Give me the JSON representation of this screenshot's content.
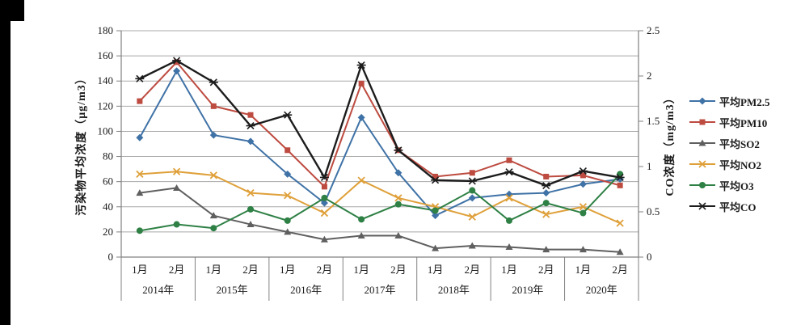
{
  "chart_data": {
    "type": "line",
    "title": "",
    "grid": true,
    "legend_position": "right",
    "left_axis": {
      "label": "污染物平均浓度（μg/m3）",
      "min": 0,
      "max": 180,
      "step": 20
    },
    "right_axis": {
      "label": "CO浓度（mg/m3）",
      "min": 0,
      "max": 2.5,
      "step": 0.5
    },
    "x_groups": [
      {
        "year": "2014年",
        "months": [
          "1月",
          "2月"
        ]
      },
      {
        "year": "2015年",
        "months": [
          "1月",
          "2月"
        ]
      },
      {
        "year": "2016年",
        "months": [
          "1月",
          "2月"
        ]
      },
      {
        "year": "2017年",
        "months": [
          "1月",
          "2月"
        ]
      },
      {
        "year": "2018年",
        "months": [
          "1月",
          "2月"
        ]
      },
      {
        "year": "2019年",
        "months": [
          "1月",
          "2月"
        ]
      },
      {
        "year": "2020年",
        "months": [
          "1月",
          "2月"
        ]
      }
    ],
    "series": [
      {
        "name": "平均PM2.5",
        "color": "#3f72a6",
        "marker": "diamond",
        "axis": "left",
        "values": [
          95,
          148,
          97,
          92,
          66,
          43,
          111,
          67,
          33,
          47,
          50,
          51,
          58,
          62
        ]
      },
      {
        "name": "平均PM10",
        "color": "#bd4b40",
        "marker": "square",
        "axis": "left",
        "values": [
          124,
          155,
          120,
          113,
          85,
          56,
          138,
          85,
          64,
          67,
          77,
          64,
          65,
          57
        ]
      },
      {
        "name": "平均SO2",
        "color": "#5f5f5f",
        "marker": "triangle",
        "axis": "left",
        "values": [
          51,
          55,
          33,
          26,
          20,
          14,
          17,
          17,
          7,
          9,
          8,
          6,
          6,
          4
        ]
      },
      {
        "name": "平均NO2",
        "color": "#dfa03a",
        "marker": "x",
        "axis": "left",
        "values": [
          66,
          68,
          65,
          51,
          49,
          35,
          61,
          47,
          40,
          32,
          47,
          34,
          40,
          27
        ]
      },
      {
        "name": "平均O3",
        "color": "#2e8045",
        "marker": "circle",
        "axis": "left",
        "values": [
          21,
          26,
          23,
          38,
          29,
          47,
          30,
          42,
          37,
          53,
          29,
          43,
          35,
          66
        ]
      },
      {
        "name": "平均CO",
        "color": "#1c1c1c",
        "marker": "asterisk",
        "axis": "right",
        "values": [
          1.97,
          2.17,
          1.93,
          1.45,
          1.57,
          0.88,
          2.12,
          1.18,
          0.85,
          0.84,
          0.94,
          0.79,
          0.95,
          0.88
        ]
      }
    ],
    "colors": {
      "gridline": "#a9a9a9",
      "axis_line": "#808080",
      "text": "#1a1a1a"
    }
  }
}
